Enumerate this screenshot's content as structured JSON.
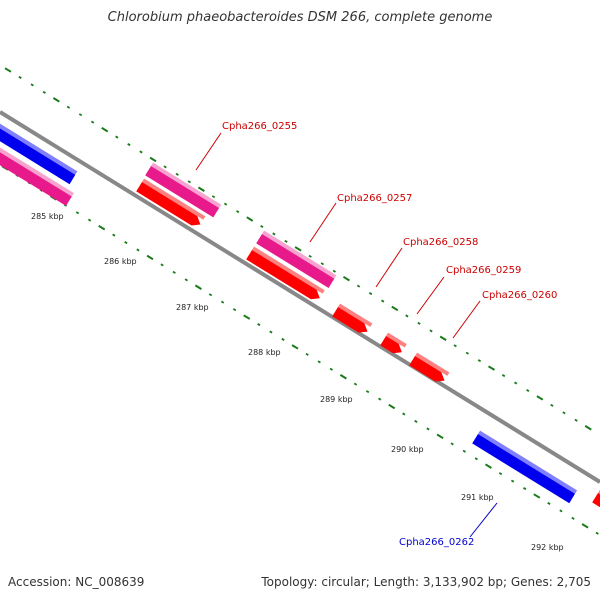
{
  "title": "Chlorobium phaeobacteroides DSM 266, complete genome",
  "footer": {
    "accession": "Accession: NC_008639",
    "summary": "Topology: circular; Length: 3,133,902 bp; Genes: 2,705"
  },
  "colors": {
    "backbone": "#888888",
    "tick": "#1a7a1a",
    "forward_gene": "#e8198b",
    "forward_gene_top": "#f7a3d0",
    "reverse_gene": "#ff0000",
    "reverse_gene_top": "#ff8080",
    "blue_gene": "#0000ee",
    "blue_gene_top": "#8080ff",
    "red_label": "#cc0000",
    "blue_label": "#0000cc"
  },
  "kbp_labels": [
    "285 kbp",
    "286 kbp",
    "287 kbp",
    "288 kbp",
    "289 kbp",
    "290 kbp",
    "291 kbp",
    "292 kbp"
  ],
  "gene_labels": [
    {
      "text": "Cpha266_0255",
      "color": "red"
    },
    {
      "text": "Cpha266_0257",
      "color": "red"
    },
    {
      "text": "Cpha266_0258",
      "color": "red"
    },
    {
      "text": "Cpha266_0259",
      "color": "red"
    },
    {
      "text": "Cpha266_0260",
      "color": "red"
    },
    {
      "text": "Cpha266_0262",
      "color": "blue"
    }
  ]
}
